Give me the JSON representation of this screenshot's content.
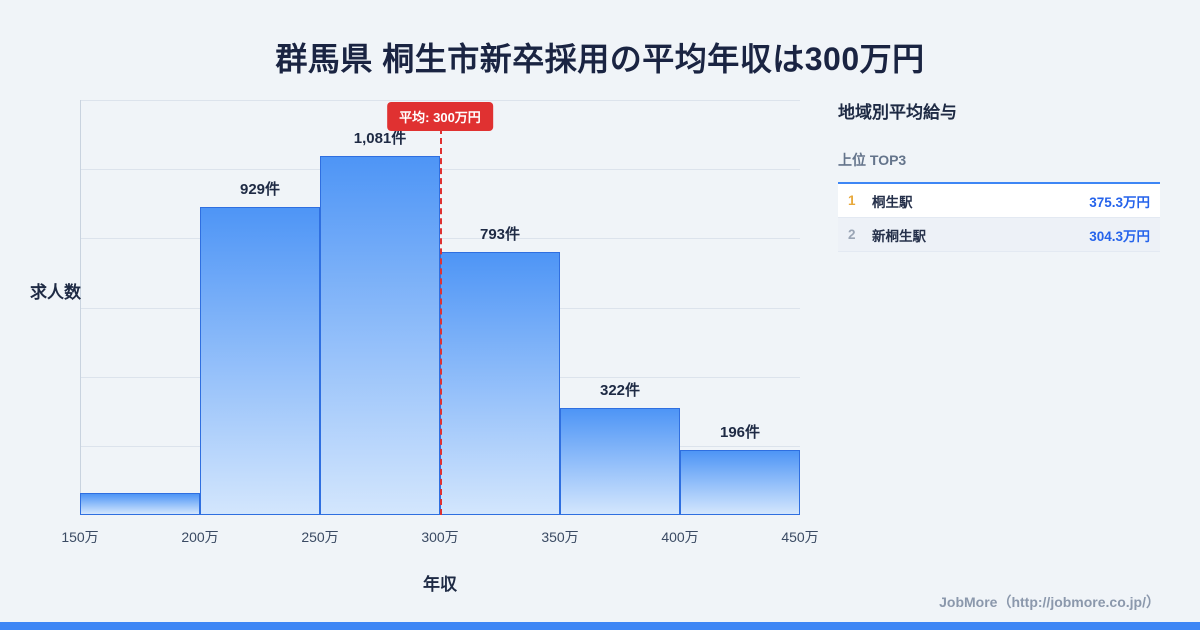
{
  "page": {
    "title": "群馬県 桐生市新卒採用の平均年収は300万円",
    "footer": "JobMore（http://jobmore.co.jp/）",
    "accent_color": "#3e86f5",
    "background_color": "#f0f4f8"
  },
  "chart_data": {
    "type": "bar",
    "title": "群馬県 桐生市新卒採用の平均年収は300万円",
    "xlabel": "年収",
    "ylabel": "求人数",
    "x_ticks": [
      "150万",
      "200万",
      "250万",
      "300万",
      "350万",
      "400万",
      "450万"
    ],
    "bin_edges": [
      150,
      200,
      250,
      300,
      350,
      400,
      450
    ],
    "values": [
      66,
      929,
      1081,
      793,
      322,
      196
    ],
    "labels": [
      "",
      "929件",
      "1,081件",
      "793件",
      "322件",
      "196件"
    ],
    "ylim": [
      0,
      1250
    ],
    "grid": true,
    "average_line": {
      "x": 300,
      "label": "平均: 300万円",
      "color": "#e03131"
    },
    "bar_color_top": "#4e95f6",
    "bar_color_bottom": "#d3e6fd",
    "bar_border": "#2f6fe0"
  },
  "side_panel": {
    "heading": "地域別平均給与",
    "subheading": "上位 TOP3",
    "rank_colors": {
      "1": "#e8a93c",
      "2": "#9aa5b5"
    },
    "value_color": "#2563eb",
    "rows": [
      {
        "rank": "1",
        "name": "桐生駅",
        "value": "375.3万円"
      },
      {
        "rank": "2",
        "name": "新桐生駅",
        "value": "304.3万円"
      }
    ]
  }
}
